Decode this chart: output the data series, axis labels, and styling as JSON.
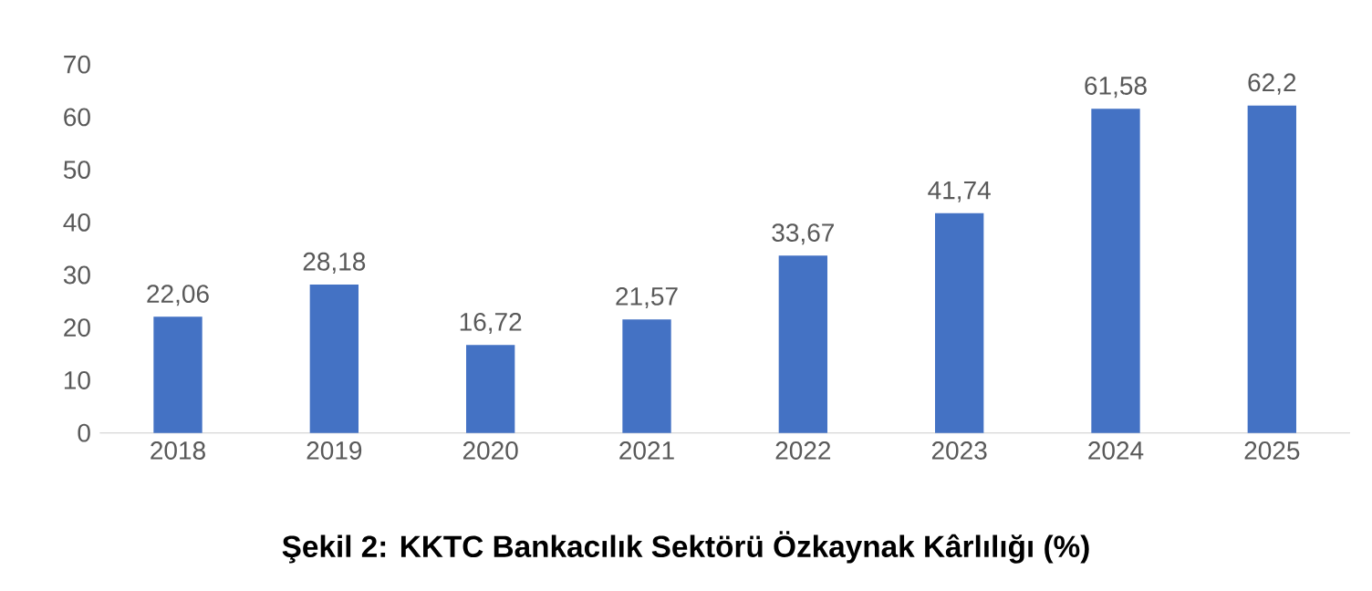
{
  "chart_data": {
    "type": "bar",
    "title": "**Şekil 2: KKTC Bankacılık Sektörü Özkaynak Kârlılığı (%)**",
    "categories": [
      "2018",
      "2019",
      "2020",
      "2021",
      "2022",
      "2023",
      "2024",
      "2025"
    ],
    "values": [
      22.06,
      28.18,
      16.72,
      21.57,
      33.67,
      41.74,
      61.58,
      62.2
    ],
    "value_labels": [
      "22,06",
      "28,18",
      "16,72",
      "21,57",
      "33,67",
      "41,74",
      "61,58",
      "62,2"
    ],
    "color": "#4472c4",
    "ylim": [
      0,
      70
    ],
    "yticks": [
      0,
      10,
      20,
      30,
      40,
      50,
      60,
      70
    ]
  }
}
